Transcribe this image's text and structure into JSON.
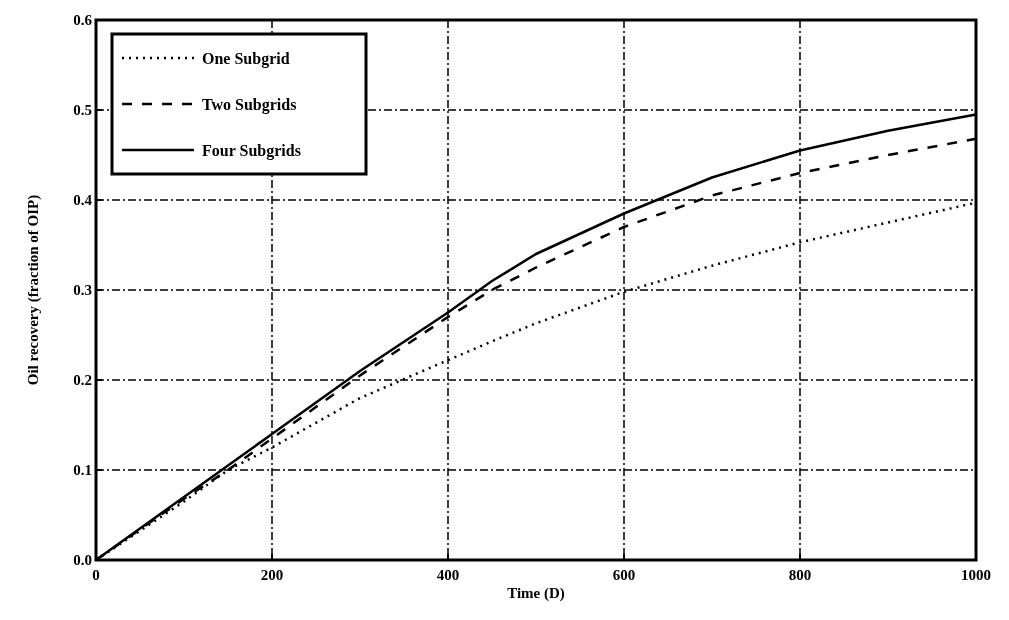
{
  "chart_data": {
    "type": "line",
    "xlabel": "Time (D)",
    "ylabel": "Oil recovery (fraction of OIP)",
    "x": [
      0,
      100,
      150,
      200,
      300,
      400,
      450,
      500,
      600,
      700,
      800,
      900,
      1000
    ],
    "series": [
      {
        "name": "One Subgrid",
        "color": "#000000",
        "line_style": "dotted",
        "values": [
          0,
          0.065,
          0.1,
          0.125,
          0.18,
          0.222,
          0.243,
          0.263,
          0.298,
          0.327,
          0.353,
          0.375,
          0.397
        ]
      },
      {
        "name": "Two Subgrids",
        "color": "#000000",
        "line_style": "dashed",
        "values": [
          0,
          0.068,
          0.1,
          0.135,
          0.205,
          0.27,
          0.3,
          0.325,
          0.37,
          0.405,
          0.43,
          0.45,
          0.468
        ]
      },
      {
        "name": "Four Subgrids",
        "color": "#000000",
        "line_style": "solid",
        "values": [
          0,
          0.07,
          0.105,
          0.14,
          0.21,
          0.275,
          0.31,
          0.34,
          0.385,
          0.425,
          0.455,
          0.477,
          0.495
        ]
      }
    ],
    "xlim": [
      0,
      1000
    ],
    "ylim": [
      0,
      0.6
    ],
    "xticks": [
      0,
      200,
      400,
      600,
      800,
      1000
    ],
    "yticks": [
      {
        "value": 0,
        "label": "0.0"
      },
      0.1,
      0.2,
      0.3,
      0.4,
      0.5,
      0.6
    ],
    "grid": true,
    "legend": "top left"
  }
}
